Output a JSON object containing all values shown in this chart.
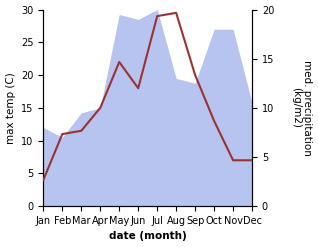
{
  "months": [
    "Jan",
    "Feb",
    "Mar",
    "Apr",
    "May",
    "Jun",
    "Jul",
    "Aug",
    "Sep",
    "Oct",
    "Nov",
    "Dec"
  ],
  "temp": [
    4.0,
    11.0,
    11.5,
    15.0,
    22.0,
    18.0,
    29.0,
    29.5,
    20.0,
    13.0,
    7.0,
    7.0
  ],
  "precip": [
    8.0,
    7.0,
    9.5,
    10.0,
    19.5,
    19.0,
    20.0,
    13.0,
    12.5,
    18.0,
    18.0,
    10.5
  ],
  "temp_color": "#993333",
  "precip_color_fill": "#b8c4f0",
  "ylabel_left": "max temp (C)",
  "ylabel_right": "med. precipitation\n(kg/m2)",
  "xlabel": "date (month)",
  "ylim_left": [
    0,
    30
  ],
  "ylim_right": [
    0,
    20
  ],
  "bg_color": "#ffffff",
  "label_fontsize": 7.5,
  "tick_fontsize": 7
}
